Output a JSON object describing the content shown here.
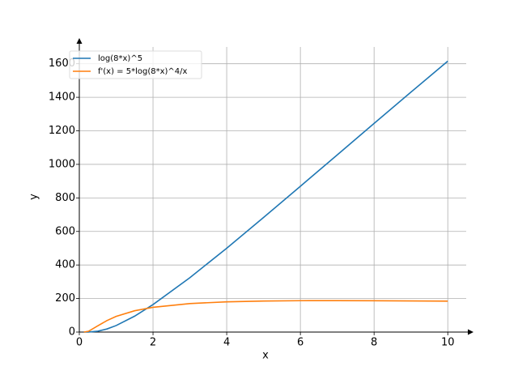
{
  "chart_data": {
    "type": "line",
    "x": [
      0.125,
      0.25,
      0.5,
      0.75,
      1,
      1.5,
      2,
      3,
      4,
      5,
      6,
      7,
      8,
      9,
      10
    ],
    "series": [
      {
        "name": "log(8*x)^5",
        "color": "#1f77b4",
        "values": [
          0,
          0.16,
          5.12,
          18.47,
          38.88,
          94.75,
          163.9,
          324.2,
          500.1,
          683.2,
          869.4,
          1056.6,
          1244.4,
          1430.6,
          1615.6
        ]
      },
      {
        "name": "f'(x) = 5*log(8*x)^4/x",
        "color": "#ff7f0e",
        "values": [
          0,
          4.62,
          36.9,
          68.7,
          93.5,
          127.1,
          147.7,
          170.0,
          180.4,
          185.2,
          187.2,
          187.5,
          187.0,
          185.8,
          184.4
        ]
      }
    ],
    "xlabel": "x",
    "ylabel": "y",
    "xlim": [
      0,
      10.5
    ],
    "ylim": [
      0,
      1700
    ],
    "xticks": [
      0,
      2,
      4,
      6,
      8,
      10
    ],
    "yticks": [
      0,
      200,
      400,
      600,
      800,
      1000,
      1200,
      1400,
      1600
    ],
    "grid": true,
    "legend": "upper left"
  }
}
